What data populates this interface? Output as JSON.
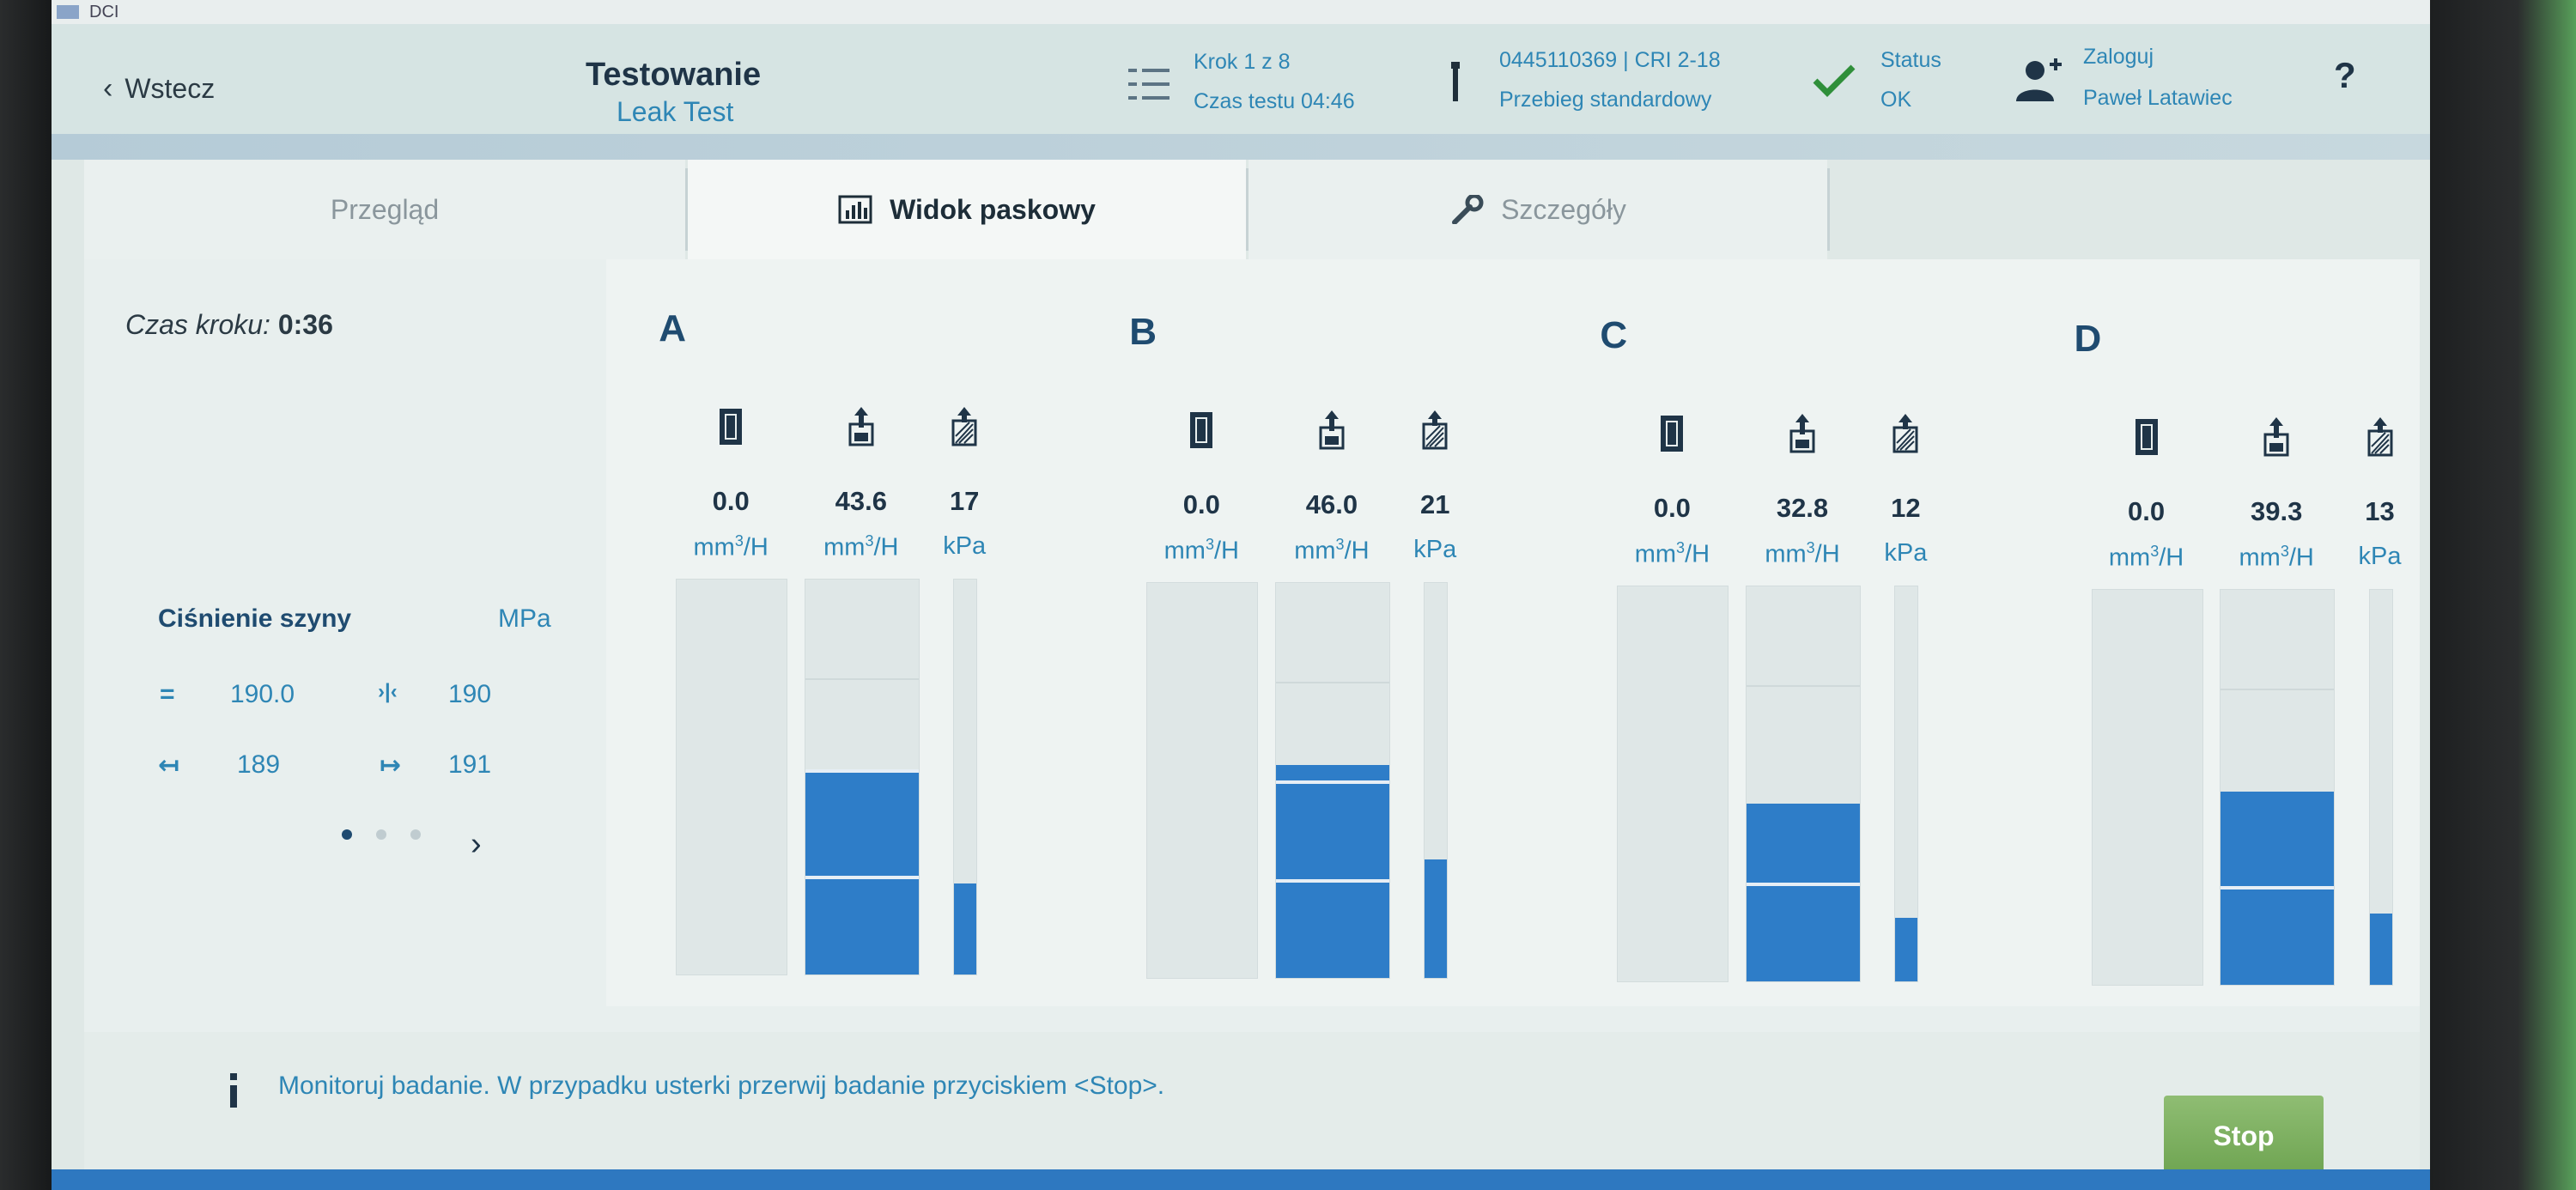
{
  "window": {
    "title": "DCI"
  },
  "header": {
    "back_label": "Wstecz",
    "title": "Testowanie",
    "subtitle": "Leak Test",
    "step": "Krok 1 z 8",
    "test_time": "Czas testu 04:46",
    "part_number": "0445110369 | CRI 2-18",
    "run_type": "Przebieg standardowy",
    "status_label": "Status",
    "status_value": "OK",
    "login_label": "Zaloguj",
    "user_name": "Paweł Latawiec",
    "help_label": "?"
  },
  "tabs": [
    {
      "label": "Przegląd",
      "active": false
    },
    {
      "label": "Widok paskowy",
      "active": true
    },
    {
      "label": "Szczegóły",
      "active": false
    }
  ],
  "step_time": {
    "label": "Czas kroku:",
    "value": "0:36"
  },
  "rail_pressure": {
    "label": "Ciśnienie szyny",
    "unit": "MPa",
    "current_symbol": "=",
    "current": "190.0",
    "target_symbol": "›|‹",
    "target": "190",
    "min_symbol": "↤",
    "min": "189",
    "max_symbol": "↦",
    "max": "191",
    "pages": 3,
    "current_page": 1
  },
  "groups": [
    {
      "letter": "A",
      "columns": [
        {
          "icon": "injector-solid-icon",
          "value": "0.0",
          "unit": "mm3/H",
          "level": 0
        },
        {
          "icon": "injector-return-icon",
          "value": "43.6",
          "unit": "mm3/H",
          "level": 0.52,
          "marks": [
            0.52,
            0.25
          ]
        },
        {
          "icon": "injector-pressure-icon",
          "value": "17",
          "unit": "kPa",
          "level": 0.23
        }
      ]
    },
    {
      "letter": "B",
      "columns": [
        {
          "icon": "injector-solid-icon",
          "value": "0.0",
          "unit": "mm3/H",
          "level": 0
        },
        {
          "icon": "injector-return-icon",
          "value": "46.0",
          "unit": "mm3/H",
          "level": 0.54,
          "marks": [
            0.5,
            0.25
          ]
        },
        {
          "icon": "injector-pressure-icon",
          "value": "21",
          "unit": "kPa",
          "level": 0.3
        }
      ]
    },
    {
      "letter": "C",
      "columns": [
        {
          "icon": "injector-solid-icon",
          "value": "0.0",
          "unit": "mm3/H",
          "level": 0
        },
        {
          "icon": "injector-return-icon",
          "value": "32.8",
          "unit": "mm3/H",
          "level": 0.45,
          "marks": [
            0.25
          ]
        },
        {
          "icon": "injector-pressure-icon",
          "value": "12",
          "unit": "kPa",
          "level": 0.16
        }
      ]
    },
    {
      "letter": "D",
      "columns": [
        {
          "icon": "injector-solid-icon",
          "value": "0.0",
          "unit": "mm3/H",
          "level": 0
        },
        {
          "icon": "injector-return-icon",
          "value": "39.3",
          "unit": "mm3/H",
          "level": 0.49,
          "marks": [
            0.25
          ]
        },
        {
          "icon": "injector-pressure-icon",
          "value": "13",
          "unit": "kPa",
          "level": 0.18
        }
      ]
    }
  ],
  "footer": {
    "message": "Monitoruj badanie. W przypadku usterki przerwij badanie przyciskiem <Stop>.",
    "stop_label": "Stop"
  },
  "colors": {
    "accent": "#2e86b5",
    "bar_fill": "#2e7dc8",
    "ok": "#2f8f3a",
    "stop": "#7bb05c"
  }
}
